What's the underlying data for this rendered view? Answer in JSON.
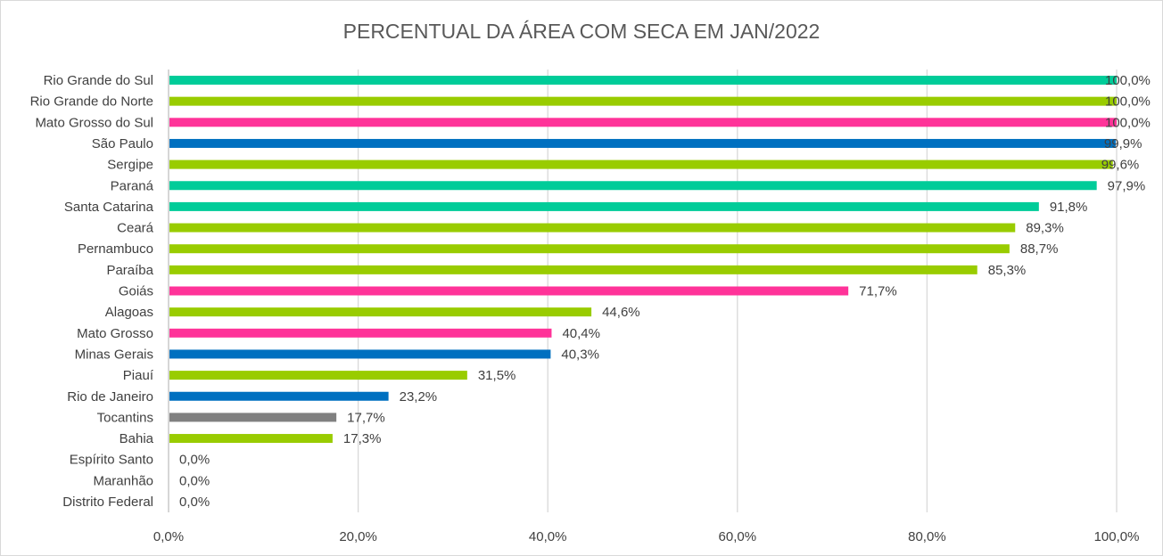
{
  "chart_data": {
    "type": "bar",
    "orientation": "horizontal",
    "title": "PERCENTUAL DA ÁREA COM SECA EM JAN/2022",
    "categories": [
      "Rio Grande do Sul",
      "Rio Grande do Norte",
      "Mato Grosso do Sul",
      "São Paulo",
      "Sergipe",
      "Paraná",
      "Santa Catarina",
      "Ceará",
      "Pernambuco",
      "Paraíba",
      "Goiás",
      "Alagoas",
      "Mato Grosso",
      "Minas Gerais",
      "Piauí",
      "Rio de Janeiro",
      "Tocantins",
      "Bahia",
      "Espírito Santo",
      "Maranhão",
      "Distrito Federal"
    ],
    "values": [
      100.0,
      100.0,
      100.0,
      99.9,
      99.6,
      97.9,
      91.8,
      89.3,
      88.7,
      85.3,
      71.7,
      44.6,
      40.4,
      40.3,
      31.5,
      23.2,
      17.7,
      17.3,
      0.0,
      0.0,
      0.0
    ],
    "data_labels": [
      "100,0%",
      "100,0%",
      "100,0%",
      "99,9%",
      "99,6%",
      "97,9%",
      "91,8%",
      "89,3%",
      "88,7%",
      "85,3%",
      "71,7%",
      "44,6%",
      "40,4%",
      "40,3%",
      "31,5%",
      "23,2%",
      "17,7%",
      "17,3%",
      "0,0%",
      "0,0%",
      "0,0%"
    ],
    "colors": [
      "#00CC99",
      "#99CC00",
      "#FF3399",
      "#0070C0",
      "#99CC00",
      "#00CC99",
      "#00CC99",
      "#99CC00",
      "#99CC00",
      "#99CC00",
      "#FF3399",
      "#99CC00",
      "#FF3399",
      "#0070C0",
      "#99CC00",
      "#0070C0",
      "#808080",
      "#99CC00",
      "#0070C0",
      "#99CC00",
      "#FF3399"
    ],
    "xlim": [
      0,
      100
    ],
    "x_ticks": [
      0,
      20,
      40,
      60,
      80,
      100
    ],
    "x_tick_labels": [
      "0,0%",
      "20,0%",
      "40,0%",
      "60,0%",
      "80,0%",
      "100,0%"
    ],
    "grid": "vertical",
    "legend": "none"
  }
}
